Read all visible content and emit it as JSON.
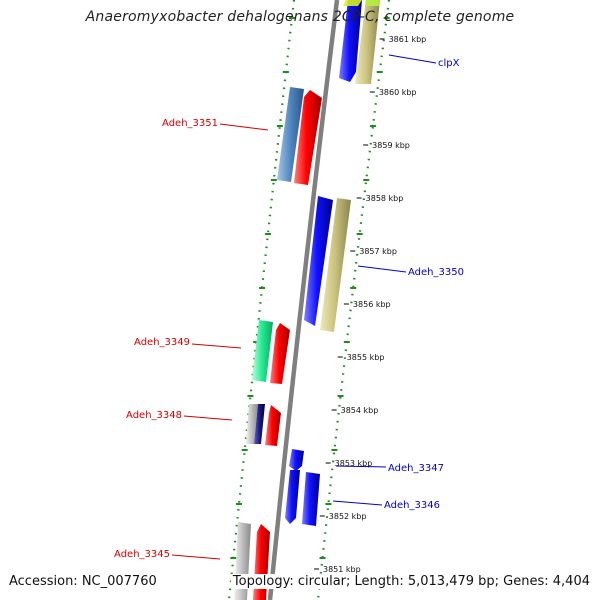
{
  "title": "Anaeromyxobacter dehalogenans 2CP-C, complete genome",
  "footer": {
    "accession": "Accession: NC_007760",
    "summary": "Topology: circular; Length: 5,013,479 bp; Genes: 4,404"
  },
  "colors": {
    "backbone": "#808080",
    "dotted_border": "#1a8f1a",
    "left_label": "#d40000",
    "right_label": "#0000cc",
    "tick_text": "#111111"
  },
  "scale_labels": [
    {
      "kbp": 3861,
      "text": "3861 kbp"
    },
    {
      "kbp": 3860,
      "text": "3860 kbp"
    },
    {
      "kbp": 3859,
      "text": "3859 kbp"
    },
    {
      "kbp": 3858,
      "text": "3858 kbp"
    },
    {
      "kbp": 3857,
      "text": "3857 kbp"
    },
    {
      "kbp": 3856,
      "text": "3856 kbp"
    },
    {
      "kbp": 3855,
      "text": "3855 kbp"
    },
    {
      "kbp": 3854,
      "text": "3854 kbp"
    },
    {
      "kbp": 3853,
      "text": "3853 kbp"
    },
    {
      "kbp": 3852,
      "text": "3852 kbp"
    },
    {
      "kbp": 3851,
      "text": "3851 kbp"
    }
  ],
  "gene_labels_left": [
    "Adeh_3351",
    "Adeh_3349",
    "Adeh_3348",
    "Adeh_3345"
  ],
  "gene_labels_right": [
    "clpX",
    "Adeh_3350",
    "Adeh_3347",
    "Adeh_3346"
  ]
}
